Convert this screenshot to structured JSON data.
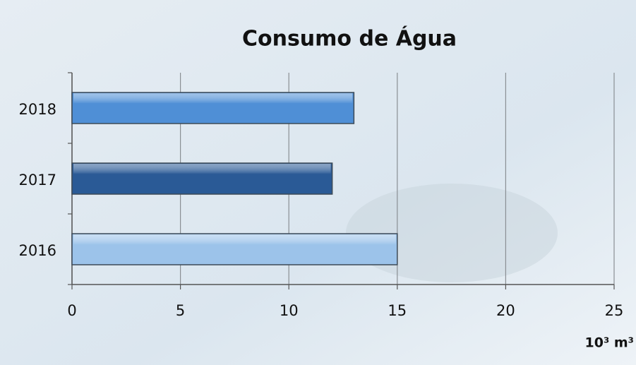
{
  "chart_data": {
    "type": "barh",
    "title": "Consumo de Água",
    "categories": [
      "2018",
      "2017",
      "2016"
    ],
    "values": [
      13,
      12,
      15
    ],
    "colors": [
      "#4f8fd6",
      "#2a5a96",
      "#9cc3ea"
    ],
    "xlabel": "10³ m³",
    "xlim": [
      0,
      25
    ],
    "xticks": [
      0,
      5,
      10,
      15,
      20,
      25
    ],
    "grid": true
  }
}
